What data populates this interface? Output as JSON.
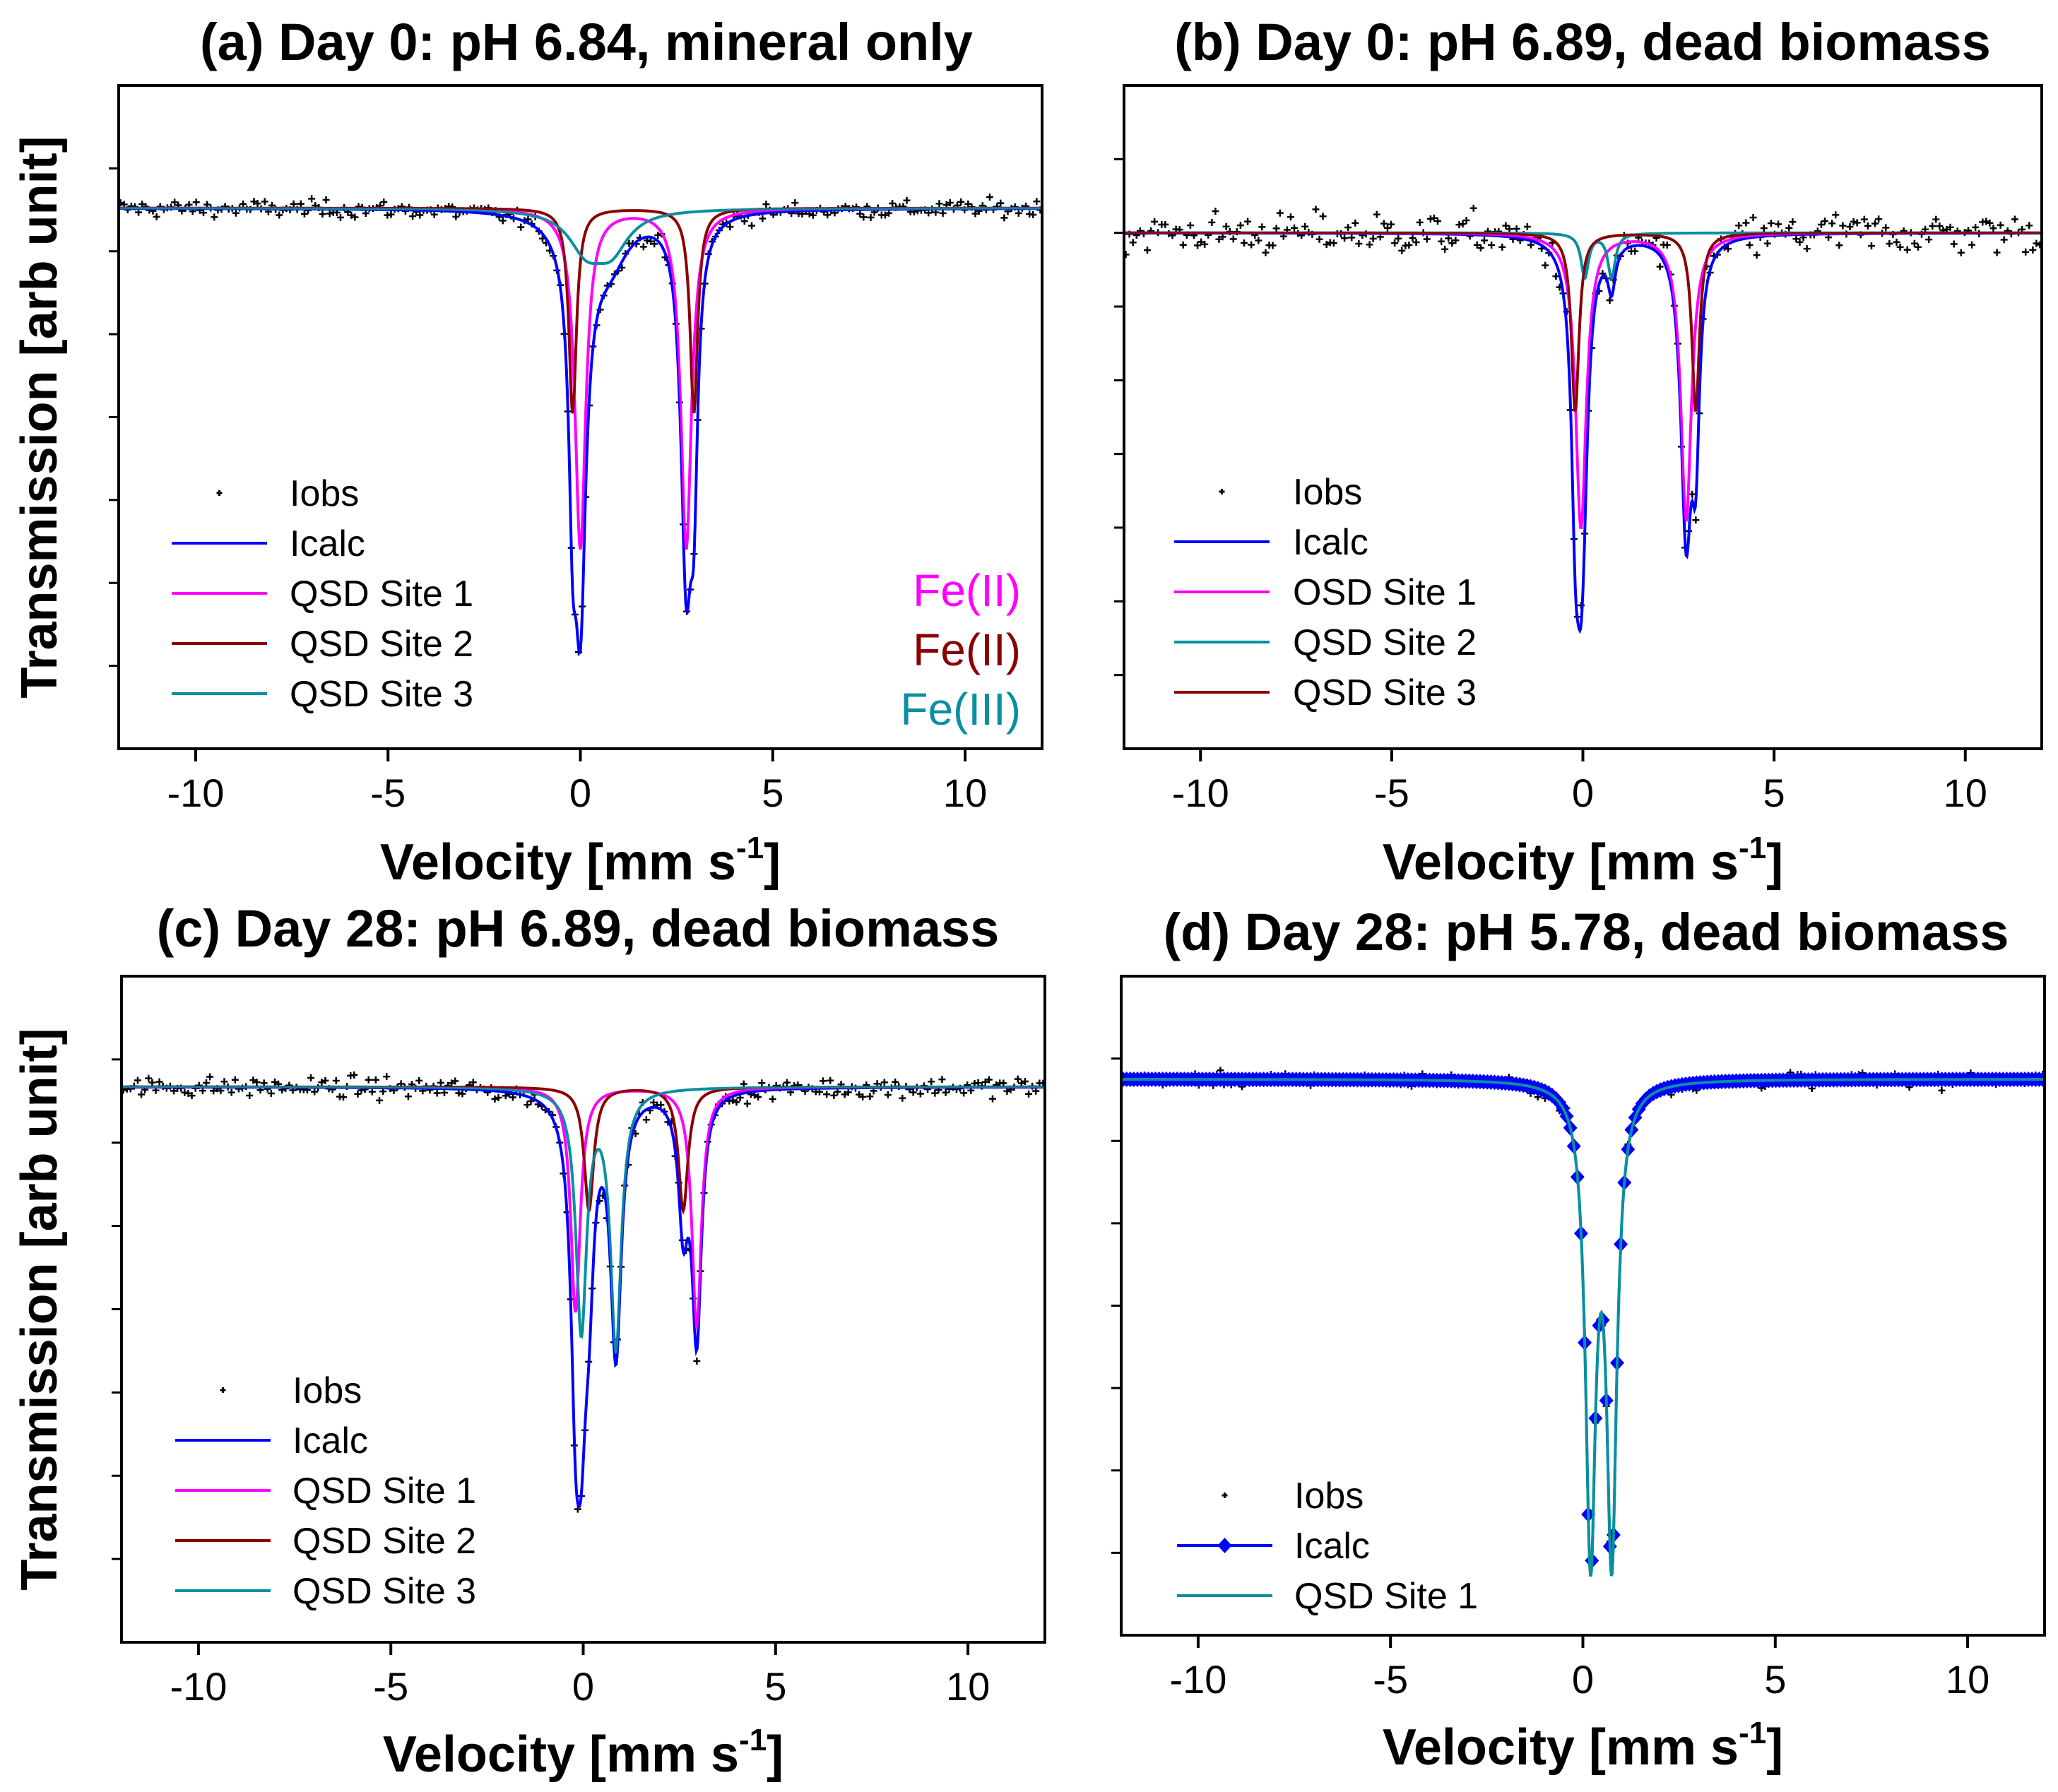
{
  "colors": {
    "Iobs": "#000000",
    "Icalc": "#0000ff",
    "magenta": "#ff00ff",
    "darkred": "#8b0000",
    "teal": "#0a8fa0"
  },
  "chart_data": [
    {
      "type": "line",
      "panel": "a",
      "title": "(a) Day 0: pH 6.84, mineral only",
      "xlabel": "Velocity [mm s",
      "xlabel_sup": "-1",
      "xlabel_end": "]",
      "ylabel": "Transmission [arb unit]",
      "xlim": [
        -12,
        12
      ],
      "ylim": [
        0,
        8
      ],
      "xticks": [
        -10,
        -5,
        0,
        5,
        10
      ],
      "xtick_labels": [
        "-10",
        "-5",
        "0",
        "5",
        "10"
      ],
      "baseline": 6.52,
      "noise_sd": 0.12,
      "legend": [
        "Iobs",
        "Icalc",
        "QSD Site 1",
        "QSD Site 2",
        "QSD Site 3"
      ],
      "sites": [
        {
          "name": "QSD Site 1",
          "color": "#ff00ff",
          "peaks": [
            [
              0.0,
              4.1,
              0.17
            ],
            [
              2.75,
              4.1,
              0.17
            ]
          ]
        },
        {
          "name": "QSD Site 2",
          "color": "#8b0000",
          "peaks": [
            [
              -0.2,
              2.47,
              0.12
            ],
            [
              2.95,
              2.47,
              0.12
            ]
          ]
        },
        {
          "name": "QSD Site 3",
          "color": "#0a8fa0",
          "peaks": [
            [
              0.15,
              0.45,
              0.55
            ],
            [
              0.8,
              0.45,
              0.55
            ]
          ]
        }
      ],
      "annotations": [
        {
          "text": "Fe(II)",
          "color": "#ff00ff"
        },
        {
          "text": "Fe(II)",
          "color": "#8b0000"
        },
        {
          "text": "Fe(III)",
          "color": "#0a8fa0"
        }
      ]
    },
    {
      "type": "line",
      "panel": "b",
      "title": "(b) Day 0: pH 6.89, dead biomass",
      "xlabel": "Velocity [mm s",
      "xlabel_sup": "-1",
      "xlabel_end": "]",
      "xlim": [
        -12,
        12
      ],
      "ylim": [
        0,
        9
      ],
      "xticks": [
        -10,
        -5,
        0,
        5,
        10
      ],
      "xtick_labels": [
        "-10",
        "-5",
        "0",
        "5",
        "10"
      ],
      "baseline": 7.0,
      "noise_sd": 0.33,
      "legend": [
        "Iobs",
        "Icalc",
        "OSD Site 1",
        "QSD Site 2",
        "QSD Site 3"
      ],
      "sites": [
        {
          "name": "OSD Site 1",
          "color": "#ff00ff",
          "peaks": [
            [
              -0.05,
              4.0,
              0.17
            ],
            [
              2.7,
              3.9,
              0.17
            ]
          ]
        },
        {
          "name": "QSD Site 2",
          "color": "#0a8fa0",
          "peaks": [
            [
              0.05,
              0.6,
              0.12
            ],
            [
              0.75,
              0.6,
              0.12
            ]
          ]
        },
        {
          "name": "QSD Site 3",
          "color": "#8b0000",
          "peaks": [
            [
              -0.2,
              2.42,
              0.12
            ],
            [
              2.95,
              2.42,
              0.12
            ]
          ]
        }
      ]
    },
    {
      "type": "line",
      "panel": "c",
      "title": "(c) Day 28: pH 6.89, dead biomass",
      "xlabel": "Velocity [mm s",
      "xlabel_sup": "-1",
      "xlabel_end": "]",
      "ylabel": "Transmission [arb unit]",
      "xlim": [
        -12,
        12
      ],
      "ylim": [
        0,
        8
      ],
      "xticks": [
        -10,
        -5,
        0,
        5,
        10
      ],
      "xtick_labels": [
        "-10",
        "-5",
        "0",
        "5",
        "10"
      ],
      "baseline": 6.67,
      "noise_sd": 0.14,
      "legend": [
        "Iobs",
        "Icalc",
        "QSD Site 1",
        "QSD Site 2",
        "QSD Site 3"
      ],
      "sites": [
        {
          "name": "QSD Site 1",
          "color": "#ff00ff",
          "peaks": [
            [
              -0.2,
              2.7,
              0.15
            ],
            [
              2.95,
              2.9,
              0.15
            ]
          ]
        },
        {
          "name": "QSD Site 2",
          "color": "#8b0000",
          "peaks": [
            [
              0.15,
              1.48,
              0.15
            ],
            [
              2.6,
              1.48,
              0.15
            ]
          ]
        },
        {
          "name": "QSD Site 3",
          "color": "#0a8fa0",
          "peaks": [
            [
              -0.05,
              2.9,
              0.17
            ],
            [
              0.85,
              3.1,
              0.17
            ]
          ]
        }
      ]
    },
    {
      "type": "line",
      "panel": "d",
      "title": "(d) Day 28: pH 5.78, dead biomass",
      "xlabel": "Velocity [mm s",
      "xlabel_sup": "-1",
      "xlabel_end": "]",
      "xlim": [
        -12,
        12
      ],
      "ylim": [
        0,
        8
      ],
      "xticks": [
        -10,
        -5,
        0,
        5,
        10
      ],
      "xtick_labels": [
        "-10",
        "-5",
        "0",
        "5",
        "10"
      ],
      "baseline": 6.75,
      "noise_sd": 0.1,
      "legend": [
        "Iobs",
        "Icalc",
        "QSD Site 1"
      ],
      "icalc_markers": "diamond",
      "sites": [
        {
          "name": "QSD Site 1",
          "color": "#0a8fa0",
          "peaks": [
            [
              0.2,
              5.6,
              0.16
            ],
            [
              0.75,
              5.6,
              0.16
            ]
          ]
        }
      ]
    }
  ]
}
